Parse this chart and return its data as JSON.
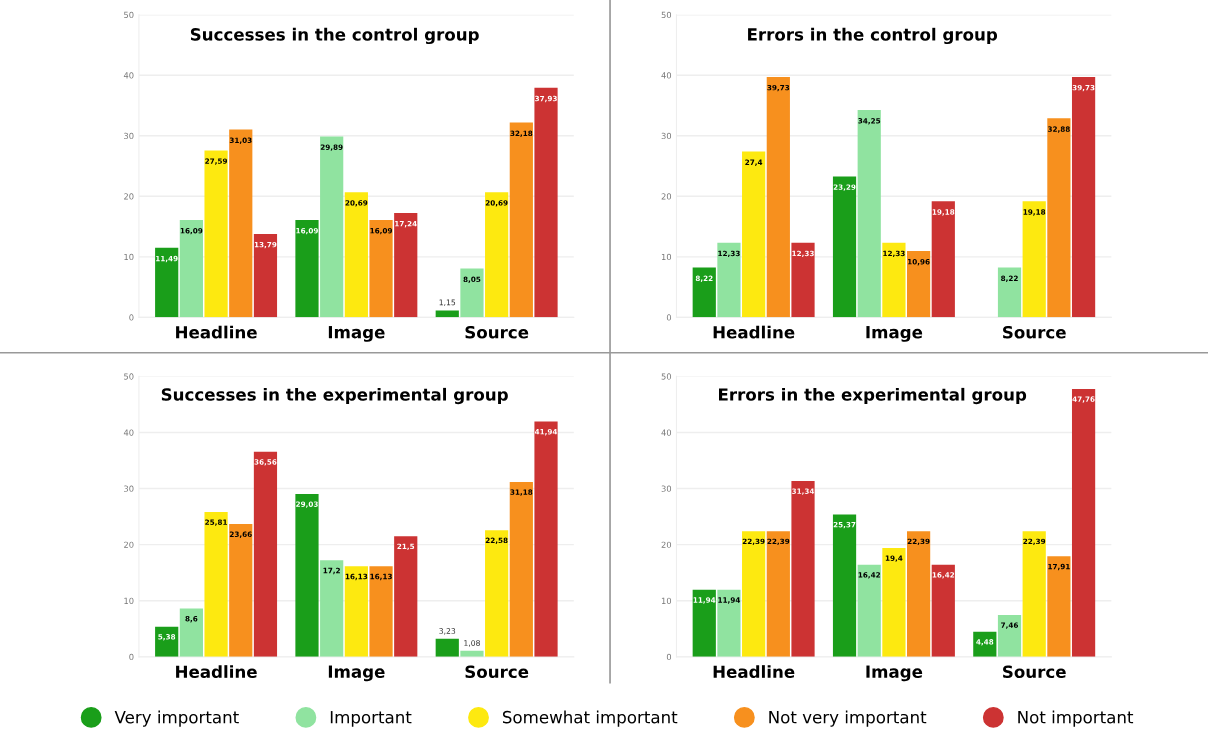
{
  "chart_data": [
    {
      "type": "bar",
      "title": "Successes in the control group",
      "categories": [
        "Headline",
        "Image",
        "Source"
      ],
      "ylim": [
        0,
        50
      ],
      "yticks": [
        0,
        10,
        20,
        30,
        40,
        50
      ],
      "grid": "y",
      "legend": "bottom",
      "series": [
        {
          "name": "Very important",
          "color": "#1a9e1a",
          "values": [
            11.49,
            16.09,
            1.15
          ],
          "value_labels": [
            "11,49",
            "16,09",
            "1,15"
          ]
        },
        {
          "name": "Important",
          "color": "#90e3a0",
          "values": [
            16.09,
            29.89,
            8.05
          ],
          "value_labels": [
            "16,09",
            "29,89",
            "8,05"
          ]
        },
        {
          "name": "Somewhat important",
          "color": "#fde910",
          "values": [
            27.59,
            20.69,
            20.69
          ],
          "value_labels": [
            "27,59",
            "20,69",
            "20,69"
          ]
        },
        {
          "name": "Not very important",
          "color": "#f7901e",
          "values": [
            31.03,
            16.09,
            32.18
          ],
          "value_labels": [
            "31,03",
            "16,09",
            "32,18"
          ]
        },
        {
          "name": "Not important",
          "color": "#cc3333",
          "values": [
            13.79,
            17.24,
            37.93
          ],
          "value_labels": [
            "13,79",
            "17,24",
            "37,93"
          ]
        }
      ]
    },
    {
      "type": "bar",
      "title": "Errors in the control group",
      "categories": [
        "Headline",
        "Image",
        "Source"
      ],
      "ylim": [
        0,
        50
      ],
      "yticks": [
        0,
        10,
        20,
        30,
        40,
        50
      ],
      "grid": "y",
      "series": [
        {
          "color": "#1a9e1a",
          "values": [
            8.22,
            23.29,
            null
          ],
          "value_labels": [
            "8,22",
            "23,29",
            null
          ]
        },
        {
          "color": "#90e3a0",
          "values": [
            12.33,
            34.25,
            8.22
          ],
          "value_labels": [
            "12,33",
            "34,25",
            "8,22"
          ]
        },
        {
          "color": "#fde910",
          "values": [
            27.4,
            12.33,
            19.18
          ],
          "value_labels": [
            "27,4",
            "12,33",
            "19,18"
          ]
        },
        {
          "color": "#f7901e",
          "values": [
            39.73,
            10.96,
            32.88
          ],
          "value_labels": [
            "39,73",
            "10,96",
            "32,88"
          ]
        },
        {
          "color": "#cc3333",
          "values": [
            12.33,
            19.18,
            39.73
          ],
          "value_labels": [
            "12,33",
            "19,18",
            "39,73"
          ]
        }
      ]
    },
    {
      "type": "bar",
      "title": "Successes in the experimental group",
      "categories": [
        "Headline",
        "Image",
        "Source"
      ],
      "ylim": [
        0,
        50
      ],
      "yticks": [
        0,
        10,
        20,
        30,
        40,
        50
      ],
      "grid": "y",
      "series": [
        {
          "color": "#1a9e1a",
          "values": [
            5.38,
            29.03,
            3.23
          ],
          "value_labels": [
            "5,38",
            "29,03",
            "3,23"
          ]
        },
        {
          "color": "#90e3a0",
          "values": [
            8.6,
            17.2,
            1.08
          ],
          "value_labels": [
            "8,6",
            "17,2",
            "1,08"
          ]
        },
        {
          "color": "#fde910",
          "values": [
            25.81,
            16.13,
            22.58
          ],
          "value_labels": [
            "25,81",
            "16,13",
            "22,58"
          ]
        },
        {
          "color": "#f7901e",
          "values": [
            23.66,
            16.13,
            31.18
          ],
          "value_labels": [
            "23,66",
            "16,13",
            "31,18"
          ]
        },
        {
          "color": "#cc3333",
          "values": [
            36.56,
            21.5,
            41.94
          ],
          "value_labels": [
            "36,56",
            "21,5",
            "41,94"
          ]
        }
      ]
    },
    {
      "type": "bar",
      "title": "Errors in the experimental group",
      "categories": [
        "Headline",
        "Image",
        "Source"
      ],
      "ylim": [
        0,
        50
      ],
      "yticks": [
        0,
        10,
        20,
        30,
        40,
        50
      ],
      "grid": "y",
      "series": [
        {
          "color": "#1a9e1a",
          "values": [
            11.94,
            25.37,
            4.48
          ],
          "value_labels": [
            "11,94",
            "25,37",
            "4,48"
          ]
        },
        {
          "color": "#90e3a0",
          "values": [
            11.94,
            16.42,
            7.46
          ],
          "value_labels": [
            "11,94",
            "16,42",
            "7,46"
          ]
        },
        {
          "color": "#fde910",
          "values": [
            22.39,
            19.4,
            22.39
          ],
          "value_labels": [
            "22,39",
            "19,4",
            "22,39"
          ]
        },
        {
          "color": "#f7901e",
          "values": [
            22.39,
            22.39,
            17.91
          ],
          "value_labels": [
            "22,39",
            "22,39",
            "17,91"
          ]
        },
        {
          "color": "#cc3333",
          "values": [
            31.34,
            16.42,
            47.76
          ],
          "value_labels": [
            "31,34",
            "16,42",
            "47,76"
          ]
        }
      ]
    }
  ]
}
